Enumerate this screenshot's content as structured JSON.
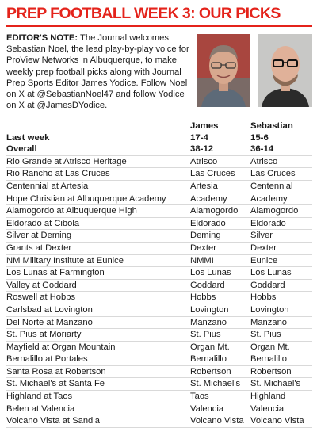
{
  "headline": "PREP FOOTBALL WEEK 3: OUR PICKS",
  "editors_note": {
    "label": "EDITOR'S NOTE:",
    "text": " The Journal welcomes Sebastian Noel, the lead play-by-play voice for ProView Networks in Albuquerque, to make weekly prep football picks along with Journal Prep Sports Editor James Yodice. Follow Noel on X at @SebastianNoel47 and follow Yodice on X at @JamesDYodice."
  },
  "photos": {
    "james": "headshot",
    "sebastian": "headshot"
  },
  "columns": [
    "James",
    "Sebastian"
  ],
  "summary": [
    {
      "label": "Last week",
      "values": [
        "17-4",
        "15-6"
      ]
    },
    {
      "label": "Overall",
      "values": [
        "38-12",
        "36-14"
      ]
    }
  ],
  "games": [
    {
      "game": "Rio Grande at Atrisco Heritage",
      "james": "Atrisco",
      "sebastian": "Atrisco"
    },
    {
      "game": "Rio Rancho at Las Cruces",
      "james": "Las Cruces",
      "sebastian": "Las Cruces"
    },
    {
      "game": "Centennial at Artesia",
      "james": "Artesia",
      "sebastian": "Centennial"
    },
    {
      "game": "Hope Christian at Albuquerque Academy",
      "james": "Academy",
      "sebastian": "Academy"
    },
    {
      "game": "Alamogordo at Albuquerque High",
      "james": "Alamogordo",
      "sebastian": "Alamogordo"
    },
    {
      "game": "Eldorado at Cibola",
      "james": "Eldorado",
      "sebastian": "Eldorado"
    },
    {
      "game": "Silver at Deming",
      "james": "Deming",
      "sebastian": "Silver"
    },
    {
      "game": "Grants at Dexter",
      "james": "Dexter",
      "sebastian": "Dexter"
    },
    {
      "game": "NM Military Institute at Eunice",
      "james": "NMMI",
      "sebastian": "Eunice"
    },
    {
      "game": "Los Lunas at Farmington",
      "james": "Los Lunas",
      "sebastian": "Los Lunas"
    },
    {
      "game": "Valley at Goddard",
      "james": "Goddard",
      "sebastian": "Goddard"
    },
    {
      "game": "Roswell at Hobbs",
      "james": "Hobbs",
      "sebastian": "Hobbs"
    },
    {
      "game": "Carlsbad at Lovington",
      "james": "Lovington",
      "sebastian": "Lovington"
    },
    {
      "game": "Del Norte at Manzano",
      "james": "Manzano",
      "sebastian": "Manzano"
    },
    {
      "game": "St. Pius at Moriarty",
      "james": "St. Pius",
      "sebastian": "St. Pius"
    },
    {
      "game": "Mayfield at Organ Mountain",
      "james": "Organ Mt.",
      "sebastian": "Organ Mt."
    },
    {
      "game": "Bernalillo at Portales",
      "james": "Bernalillo",
      "sebastian": "Bernalillo"
    },
    {
      "game": "Santa Rosa at Robertson",
      "james": "Robertson",
      "sebastian": "Robertson"
    },
    {
      "game": "St. Michael's at Santa Fe",
      "james": "St. Michael's",
      "sebastian": "St. Michael's"
    },
    {
      "game": "Highland at Taos",
      "james": "Taos",
      "sebastian": "Highland"
    },
    {
      "game": "Belen at Valencia",
      "james": "Valencia",
      "sebastian": "Valencia"
    },
    {
      "game": "Volcano Vista at Sandia",
      "james": "Volcano Vista",
      "sebastian": "Volcano Vista"
    }
  ]
}
